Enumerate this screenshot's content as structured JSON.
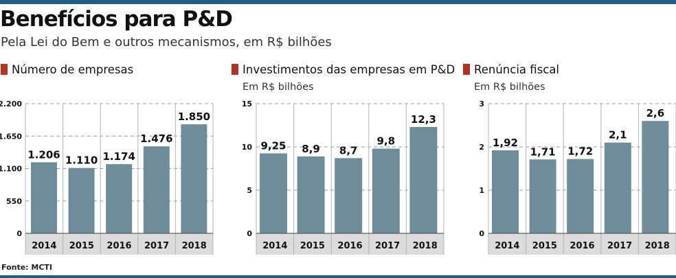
{
  "header": {
    "title": "Benefícios para P&D",
    "subtitle": "Pela Lei do Bem e outros mecanismos, em R$ bilhões"
  },
  "footer": {
    "source": "Fonte: MCTI"
  },
  "colors": {
    "bar": "#6e8c9a",
    "marker": "#b5321f",
    "axis_bg": "#dcdcdc",
    "accent": "#1e5f86"
  },
  "chart_data": [
    {
      "type": "bar",
      "title": "Número de empresas",
      "subtitle": "",
      "categories": [
        "2014",
        "2015",
        "2016",
        "2017",
        "2018"
      ],
      "values": [
        1206,
        1110,
        1174,
        1476,
        1850
      ],
      "value_labels": [
        "1.206",
        "1.110",
        "1.174",
        "1.476",
        "1.850"
      ],
      "yticks": [
        0,
        550,
        1100,
        1650,
        2200
      ],
      "ytick_labels": [
        "0",
        "550",
        "1.100",
        "1.650",
        "2.200"
      ],
      "ylim": [
        0,
        2200
      ],
      "grid": true
    },
    {
      "type": "bar",
      "title": "Investimentos das empresas em P&D",
      "subtitle": "Em R$ bilhões",
      "categories": [
        "2014",
        "2015",
        "2016",
        "2017",
        "2018"
      ],
      "values": [
        9.25,
        8.9,
        8.7,
        9.8,
        12.3
      ],
      "value_labels": [
        "9,25",
        "8,9",
        "8,7",
        "9,8",
        "12,3"
      ],
      "yticks": [
        0,
        5,
        10,
        15
      ],
      "ytick_labels": [
        "0",
        "5",
        "10",
        "15"
      ],
      "ylim": [
        0,
        15
      ],
      "grid": true
    },
    {
      "type": "bar",
      "title": "Renúncia fiscal",
      "subtitle": "Em R$ bilhões",
      "categories": [
        "2014",
        "2015",
        "2016",
        "2017",
        "2018"
      ],
      "values": [
        1.92,
        1.71,
        1.72,
        2.1,
        2.6
      ],
      "value_labels": [
        "1,92",
        "1,71",
        "1,72",
        "2,1",
        "2,6"
      ],
      "yticks": [
        0,
        1,
        2,
        3
      ],
      "ytick_labels": [
        "0",
        "1",
        "2",
        "3"
      ],
      "ylim": [
        0,
        3
      ],
      "grid": true
    }
  ]
}
